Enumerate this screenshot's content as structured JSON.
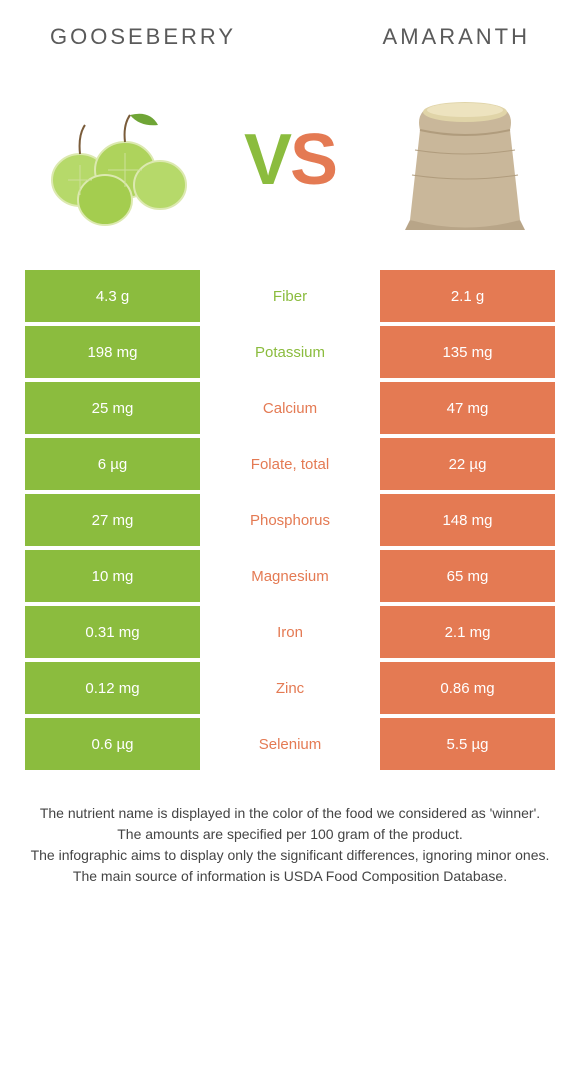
{
  "colors": {
    "left": "#8bbc3e",
    "right": "#e47a53",
    "vs_v": "#8bbc3e",
    "vs_s": "#e47a53",
    "header_text": "#5a5a5a",
    "footer_text": "#444444",
    "row_bg_white": "#ffffff"
  },
  "header": {
    "left_title": "GOOSEBERRY",
    "right_title": "AMARANTH"
  },
  "vs": {
    "v": "V",
    "s": "S"
  },
  "rows": [
    {
      "left": "4.3 g",
      "label": "Fiber",
      "right": "2.1 g",
      "winner": "left"
    },
    {
      "left": "198 mg",
      "label": "Potassium",
      "right": "135 mg",
      "winner": "left"
    },
    {
      "left": "25 mg",
      "label": "Calcium",
      "right": "47 mg",
      "winner": "right"
    },
    {
      "left": "6 µg",
      "label": "Folate, total",
      "right": "22 µg",
      "winner": "right"
    },
    {
      "left": "27 mg",
      "label": "Phosphorus",
      "right": "148 mg",
      "winner": "right"
    },
    {
      "left": "10 mg",
      "label": "Magnesium",
      "right": "65 mg",
      "winner": "right"
    },
    {
      "left": "0.31 mg",
      "label": "Iron",
      "right": "2.1 mg",
      "winner": "right"
    },
    {
      "left": "0.12 mg",
      "label": "Zinc",
      "right": "0.86 mg",
      "winner": "right"
    },
    {
      "left": "0.6 µg",
      "label": "Selenium",
      "right": "5.5 µg",
      "winner": "right"
    }
  ],
  "footer": {
    "line1": "The nutrient name is displayed in the color of the food we considered as 'winner'.",
    "line2": "The amounts are specified per 100 gram of the product.",
    "line3": "The infographic aims to display only the significant differences, ignoring minor ones.",
    "line4": "The main source of information is USDA Food Composition Database."
  },
  "typography": {
    "header_fontsize": 22,
    "header_letterspacing": 3,
    "vs_fontsize": 72,
    "cell_fontsize": 15,
    "footer_fontsize": 14
  }
}
